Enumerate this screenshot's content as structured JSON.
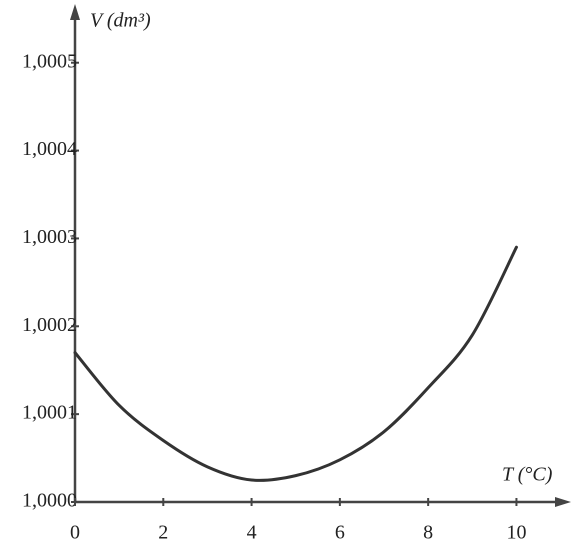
{
  "chart_data": {
    "type": "line",
    "y_label": "V (dm³)",
    "x_label": "T (°C)",
    "x": [
      0,
      1,
      2,
      3,
      4,
      5,
      6,
      7,
      8,
      9,
      10
    ],
    "values": [
      1.00017,
      1.00011,
      1.00007,
      1.00004,
      1.000025,
      1.00003,
      1.000048,
      1.00008,
      1.00013,
      1.00019,
      1.00029
    ],
    "color": "#333333",
    "xlim": [
      0,
      11.1
    ],
    "ylim": [
      1.0,
      1.00056
    ],
    "xticks": [
      0,
      2,
      4,
      6,
      8,
      10
    ],
    "yticks": [
      {
        "value": 1.0,
        "label": "1,0000"
      },
      {
        "value": 1.0001,
        "label": "1,0001"
      },
      {
        "value": 1.0002,
        "label": "1,0002"
      },
      {
        "value": 1.0003,
        "label": "1,0003"
      },
      {
        "value": 1.0004,
        "label": "1,0004"
      },
      {
        "value": 1.0005,
        "label": "1,0005"
      }
    ],
    "grid": false
  }
}
